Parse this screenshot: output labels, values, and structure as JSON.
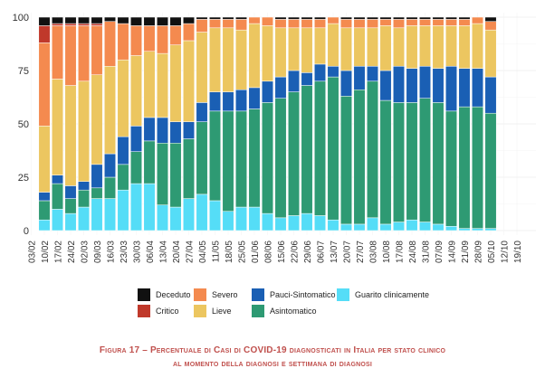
{
  "chart_data": {
    "type": "bar",
    "stacked": true,
    "normalized": true,
    "ylim": [
      0,
      100
    ],
    "yticks": [
      0,
      25,
      50,
      75,
      100
    ],
    "xtick_labels": [
      "03/02",
      "10/02",
      "17/02",
      "24/02",
      "02/03",
      "09/03",
      "16/03",
      "23/03",
      "30/03",
      "06/04",
      "13/04",
      "20/04",
      "27/04",
      "04/05",
      "11/05",
      "18/05",
      "25/05",
      "01/06",
      "08/06",
      "15/06",
      "22/06",
      "29/06",
      "06/07",
      "13/07",
      "20/07",
      "27/07",
      "03/08",
      "10/08",
      "17/08",
      "24/08",
      "31/08",
      "07/09",
      "14/09",
      "21/09",
      "28/09",
      "05/10",
      "12/10",
      "19/10"
    ],
    "categories": [
      "10/02",
      "17/02",
      "24/02",
      "02/03",
      "09/03",
      "16/03",
      "23/03",
      "30/03",
      "06/04",
      "13/04",
      "20/04",
      "27/04",
      "04/05",
      "11/05",
      "18/05",
      "25/05",
      "01/06",
      "08/06",
      "15/06",
      "22/06",
      "29/06",
      "06/07",
      "13/07",
      "20/07",
      "27/07",
      "03/08",
      "10/08",
      "17/08",
      "24/08",
      "31/08",
      "07/09",
      "14/09",
      "21/09",
      "28/09",
      "05/10"
    ],
    "series": [
      {
        "name": "Guarito clinicamente",
        "color": "#55ddf7",
        "values": [
          5,
          10,
          8,
          11,
          15,
          15,
          19,
          22,
          22,
          12,
          11,
          15,
          17,
          14,
          9,
          11,
          11,
          8,
          6,
          7,
          8,
          7,
          5,
          3,
          3,
          6,
          3,
          4,
          5,
          4,
          3,
          2,
          1,
          1,
          1
        ]
      },
      {
        "name": "Asintomatico",
        "color": "#2e9a73",
        "values": [
          9,
          12,
          7,
          8,
          5,
          10,
          12,
          15,
          20,
          29,
          30,
          28,
          34,
          42,
          47,
          45,
          46,
          52,
          56,
          58,
          60,
          63,
          67,
          60,
          63,
          64,
          58,
          56,
          55,
          58,
          57,
          54,
          57,
          57,
          54
        ]
      },
      {
        "name": "Pauci-Sintomatico",
        "color": "#1a5fb4",
        "values": [
          4,
          4,
          6,
          4,
          11,
          11,
          13,
          12,
          11,
          12,
          10,
          8,
          9,
          9,
          9,
          10,
          10,
          10,
          10,
          10,
          6,
          8,
          5,
          12,
          11,
          7,
          14,
          17,
          16,
          15,
          16,
          21,
          18,
          18,
          17
        ]
      },
      {
        "name": "Lieve",
        "color": "#ecc660",
        "values": [
          31,
          45,
          47,
          47,
          42,
          41,
          36,
          33,
          31,
          30,
          36,
          38,
          33,
          30,
          30,
          28,
          30,
          26,
          23,
          20,
          21,
          17,
          20,
          20,
          18,
          18,
          21,
          18,
          20,
          19,
          20,
          19,
          20,
          21,
          22
        ]
      },
      {
        "name": "Severo",
        "color": "#f48a4f",
        "values": [
          39,
          25,
          28,
          26,
          23,
          21,
          17,
          14,
          12,
          13,
          9,
          8,
          6,
          4,
          4,
          5,
          3,
          4,
          4,
          4,
          4,
          4,
          3,
          4,
          4,
          4,
          3,
          4,
          3,
          3,
          3,
          3,
          3,
          3,
          4
        ]
      },
      {
        "name": "Critico",
        "color": "#c0392b",
        "values": [
          8,
          1,
          1,
          1,
          1,
          0,
          0,
          0,
          0,
          0,
          0,
          0,
          0,
          0,
          0,
          0,
          0,
          0,
          0,
          0,
          0,
          0,
          0,
          0,
          0,
          0,
          0,
          0,
          0,
          0,
          0,
          0,
          0,
          0,
          0
        ]
      },
      {
        "name": "Deceduto",
        "color": "#111111",
        "values": [
          4,
          3,
          3,
          3,
          3,
          2,
          3,
          4,
          4,
          4,
          4,
          3,
          1,
          1,
          1,
          1,
          0,
          0,
          1,
          1,
          1,
          1,
          0,
          1,
          1,
          1,
          1,
          1,
          1,
          1,
          1,
          1,
          1,
          0,
          2
        ]
      }
    ],
    "legend_position": "bottom",
    "grid": true
  },
  "legend": {
    "row1": [
      {
        "label": "Deceduto",
        "color": "#111111"
      },
      {
        "label": "Severo",
        "color": "#f48a4f"
      },
      {
        "label": "Pauci-Sintomatico",
        "color": "#1a5fb4"
      },
      {
        "label": "Guarito clinicamente",
        "color": "#55ddf7"
      }
    ],
    "row2": [
      {
        "label": "Critico",
        "color": "#c0392b"
      },
      {
        "label": "Lieve",
        "color": "#ecc660"
      },
      {
        "label": "Asintomatico",
        "color": "#2e9a73"
      }
    ]
  },
  "caption": {
    "line1": "Figura 17 – Percentuale di Casi di COVID-19 diagnosticati in Italia per stato clinico",
    "line2": "al momento della diagnosi e settimana di diagnosi"
  }
}
